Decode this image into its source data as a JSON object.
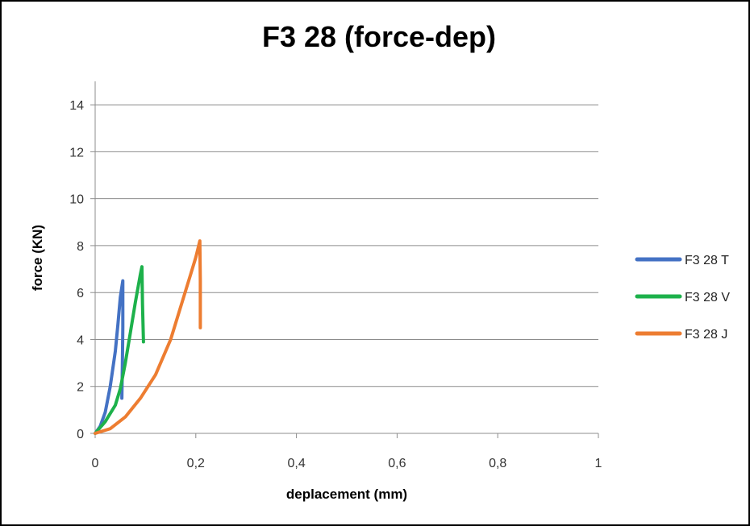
{
  "chart_data": {
    "type": "line",
    "title": "F3 28 (force-dep)",
    "xlabel": "deplacement (mm)",
    "ylabel": "force (KN)",
    "xlim": [
      0,
      1
    ],
    "ylim": [
      0,
      15
    ],
    "x_ticks": [
      0,
      0.2,
      0.4,
      0.6,
      0.8,
      1
    ],
    "x_tick_labels": [
      "0",
      "0,2",
      "0,4",
      "0,6",
      "0,8",
      "1"
    ],
    "y_ticks": [
      0,
      2,
      4,
      6,
      8,
      10,
      12,
      14
    ],
    "y_tick_labels": [
      "0",
      "2",
      "4",
      "6",
      "8",
      "10",
      "12",
      "14"
    ],
    "grid": "horizontal",
    "legend_position": "right",
    "series": [
      {
        "name": "F3 28 T",
        "color": "#4472C4",
        "x": [
          0,
          0.01,
          0.02,
          0.03,
          0.04,
          0.045,
          0.05,
          0.055,
          0.055,
          0.054,
          0.053
        ],
        "y": [
          0,
          0.3,
          0.9,
          2.0,
          3.5,
          4.6,
          5.8,
          6.5,
          4.5,
          2.8,
          1.5
        ]
      },
      {
        "name": "F3 28 V",
        "color": "#1DB14B",
        "x": [
          0,
          0.02,
          0.04,
          0.05,
          0.06,
          0.07,
          0.08,
          0.09,
          0.093,
          0.094,
          0.096
        ],
        "y": [
          0,
          0.5,
          1.2,
          1.9,
          3.0,
          4.3,
          5.6,
          6.8,
          7.1,
          5.5,
          3.9
        ]
      },
      {
        "name": "F3 28 J",
        "color": "#ED7D31",
        "x": [
          0,
          0.03,
          0.06,
          0.09,
          0.12,
          0.15,
          0.17,
          0.19,
          0.2,
          0.208,
          0.209,
          0.209
        ],
        "y": [
          0,
          0.2,
          0.7,
          1.5,
          2.5,
          4.0,
          5.4,
          6.8,
          7.5,
          8.2,
          6.5,
          4.5
        ]
      }
    ]
  }
}
